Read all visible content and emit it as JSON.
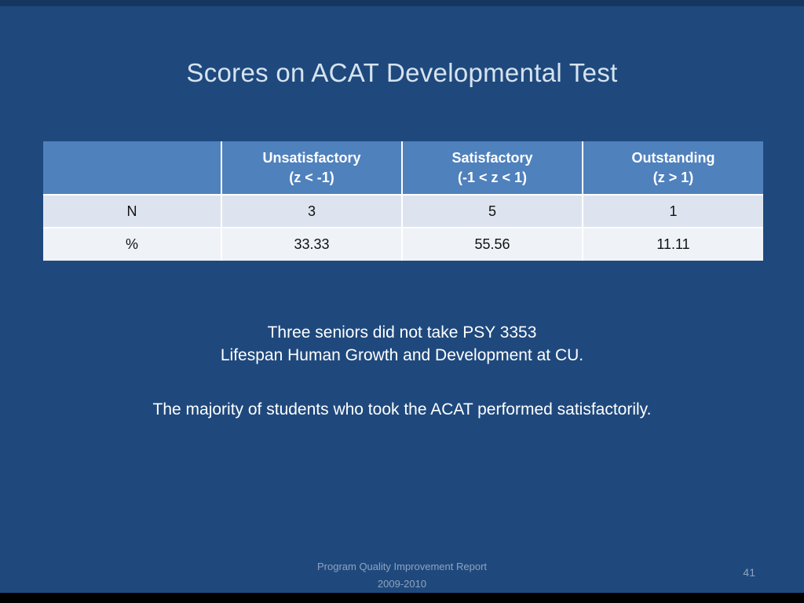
{
  "slide": {
    "title": "Scores on ACAT Developmental Test",
    "notes_line1": "Three seniors did not take PSY 3353",
    "notes_line2": "Lifespan Human Growth and Development at CU.",
    "conclusion": "The majority of students who took the ACAT performed satisfactorily.",
    "footer_line1": "Program Quality Improvement Report",
    "footer_line2": "2009-2010",
    "page_number": "41"
  },
  "table": {
    "columns": [
      {
        "label": "",
        "sublabel": ""
      },
      {
        "label": "Unsatisfactory",
        "sublabel": "(z < -1)"
      },
      {
        "label": "Satisfactory",
        "sublabel": "(-1 < z < 1)"
      },
      {
        "label": "Outstanding",
        "sublabel": "(z > 1)"
      }
    ],
    "rows": [
      {
        "label": "N",
        "values": [
          "3",
          "5",
          "1"
        ]
      },
      {
        "label": "%",
        "values": [
          "33.33",
          "55.56",
          "11.11"
        ]
      }
    ]
  },
  "colors": {
    "slide_background": "#1F497D",
    "table_header_fill": "#4F81BD",
    "table_row_odd": "#DEE4EF",
    "table_row_even": "#EFF2F7",
    "title_text": "#D6E3F0",
    "body_text": "#FFFFFF",
    "footer_text": "#8FA3BF",
    "bottom_bar": "#000000"
  }
}
